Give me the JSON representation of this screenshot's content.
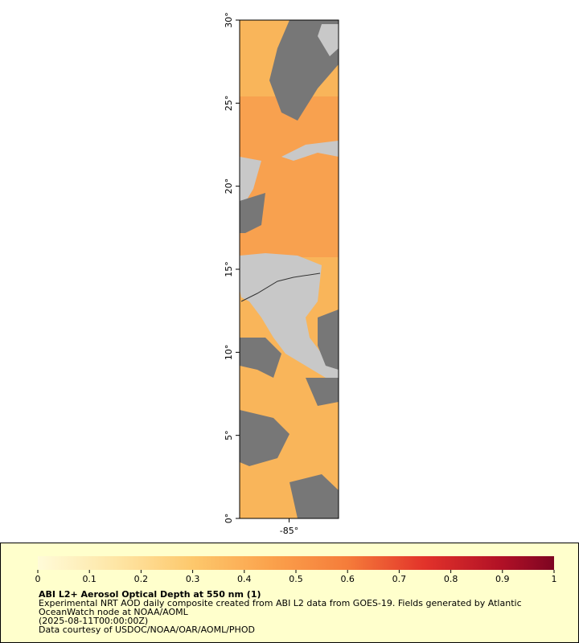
{
  "map": {
    "ylim": [
      0,
      30
    ],
    "yticks": [
      {
        "value": 0,
        "label": "0°"
      },
      {
        "value": 5,
        "label": "5°"
      },
      {
        "value": 10,
        "label": "10°"
      },
      {
        "value": 15,
        "label": "15°"
      },
      {
        "value": 20,
        "label": "20°"
      },
      {
        "value": 25,
        "label": "25°"
      },
      {
        "value": 30,
        "label": "30°"
      }
    ],
    "xlim": [
      -88,
      -82
    ],
    "xticks": [
      {
        "value": -85,
        "label": "-85°"
      }
    ]
  },
  "legend": {
    "colorbar": {
      "lim": [
        0,
        1
      ],
      "ticks": [
        0,
        0.1,
        0.2,
        0.3,
        0.4,
        0.5,
        0.6,
        0.7,
        0.8,
        0.9,
        1
      ]
    },
    "title": "ABI L2+ Aerosol Optical Depth at 550 nm (1)",
    "lines": [
      "Experimental NRT AOD daily composite created from ABI L2 data from GOES-19. Fields generated by Atlantic",
      "OceanWatch node at NOAA/AOML",
      "(2025-08-11T00:00:00Z)",
      "Data courtesy of USDOC/NOAA/OAR/AOML/PHOD"
    ]
  }
}
